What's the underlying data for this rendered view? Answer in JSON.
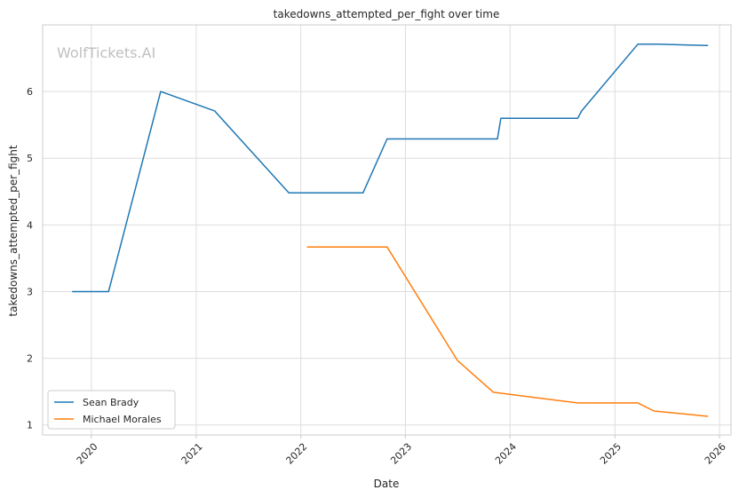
{
  "chart_data": {
    "type": "line",
    "title": "takedowns_attempted_per_fight over time",
    "xlabel": "Date",
    "ylabel": "takedowns_attempted_per_fight",
    "watermark": "WolfTickets.AI",
    "x_ticks": [
      "2020",
      "2021",
      "2022",
      "2023",
      "2024",
      "2025",
      "2026"
    ],
    "y_ticks": [
      "1",
      "2",
      "3",
      "4",
      "5",
      "6"
    ],
    "xlim": [
      "2019-07-15",
      "2026-02-10"
    ],
    "ylim": [
      0.85,
      7.0
    ],
    "grid": true,
    "legend_position": "lower-left",
    "series": [
      {
        "name": "Sean Brady",
        "color": "#1f77b4",
        "points": [
          [
            "2019-10-26",
            3.0
          ],
          [
            "2020-03-01",
            3.0
          ],
          [
            "2020-08-30",
            6.0
          ],
          [
            "2021-03-06",
            5.71
          ],
          [
            "2021-11-20",
            4.48
          ],
          [
            "2022-08-06",
            4.48
          ],
          [
            "2022-10-29",
            5.29
          ],
          [
            "2023-11-18",
            5.29
          ],
          [
            "2023-11-30",
            5.6
          ],
          [
            "2024-08-24",
            5.6
          ],
          [
            "2024-09-07",
            5.71
          ],
          [
            "2025-03-22",
            6.71
          ],
          [
            "2025-05-31",
            6.71
          ],
          [
            "2025-11-22",
            6.69
          ]
        ]
      },
      {
        "name": "Michael Morales",
        "color": "#ff7f0e",
        "points": [
          [
            "2022-01-22",
            3.67
          ],
          [
            "2022-10-29",
            3.67
          ],
          [
            "2023-07-01",
            1.97
          ],
          [
            "2023-11-04",
            1.49
          ],
          [
            "2024-08-24",
            1.33
          ],
          [
            "2025-03-22",
            1.33
          ],
          [
            "2025-05-17",
            1.21
          ],
          [
            "2025-11-22",
            1.13
          ]
        ]
      }
    ]
  }
}
